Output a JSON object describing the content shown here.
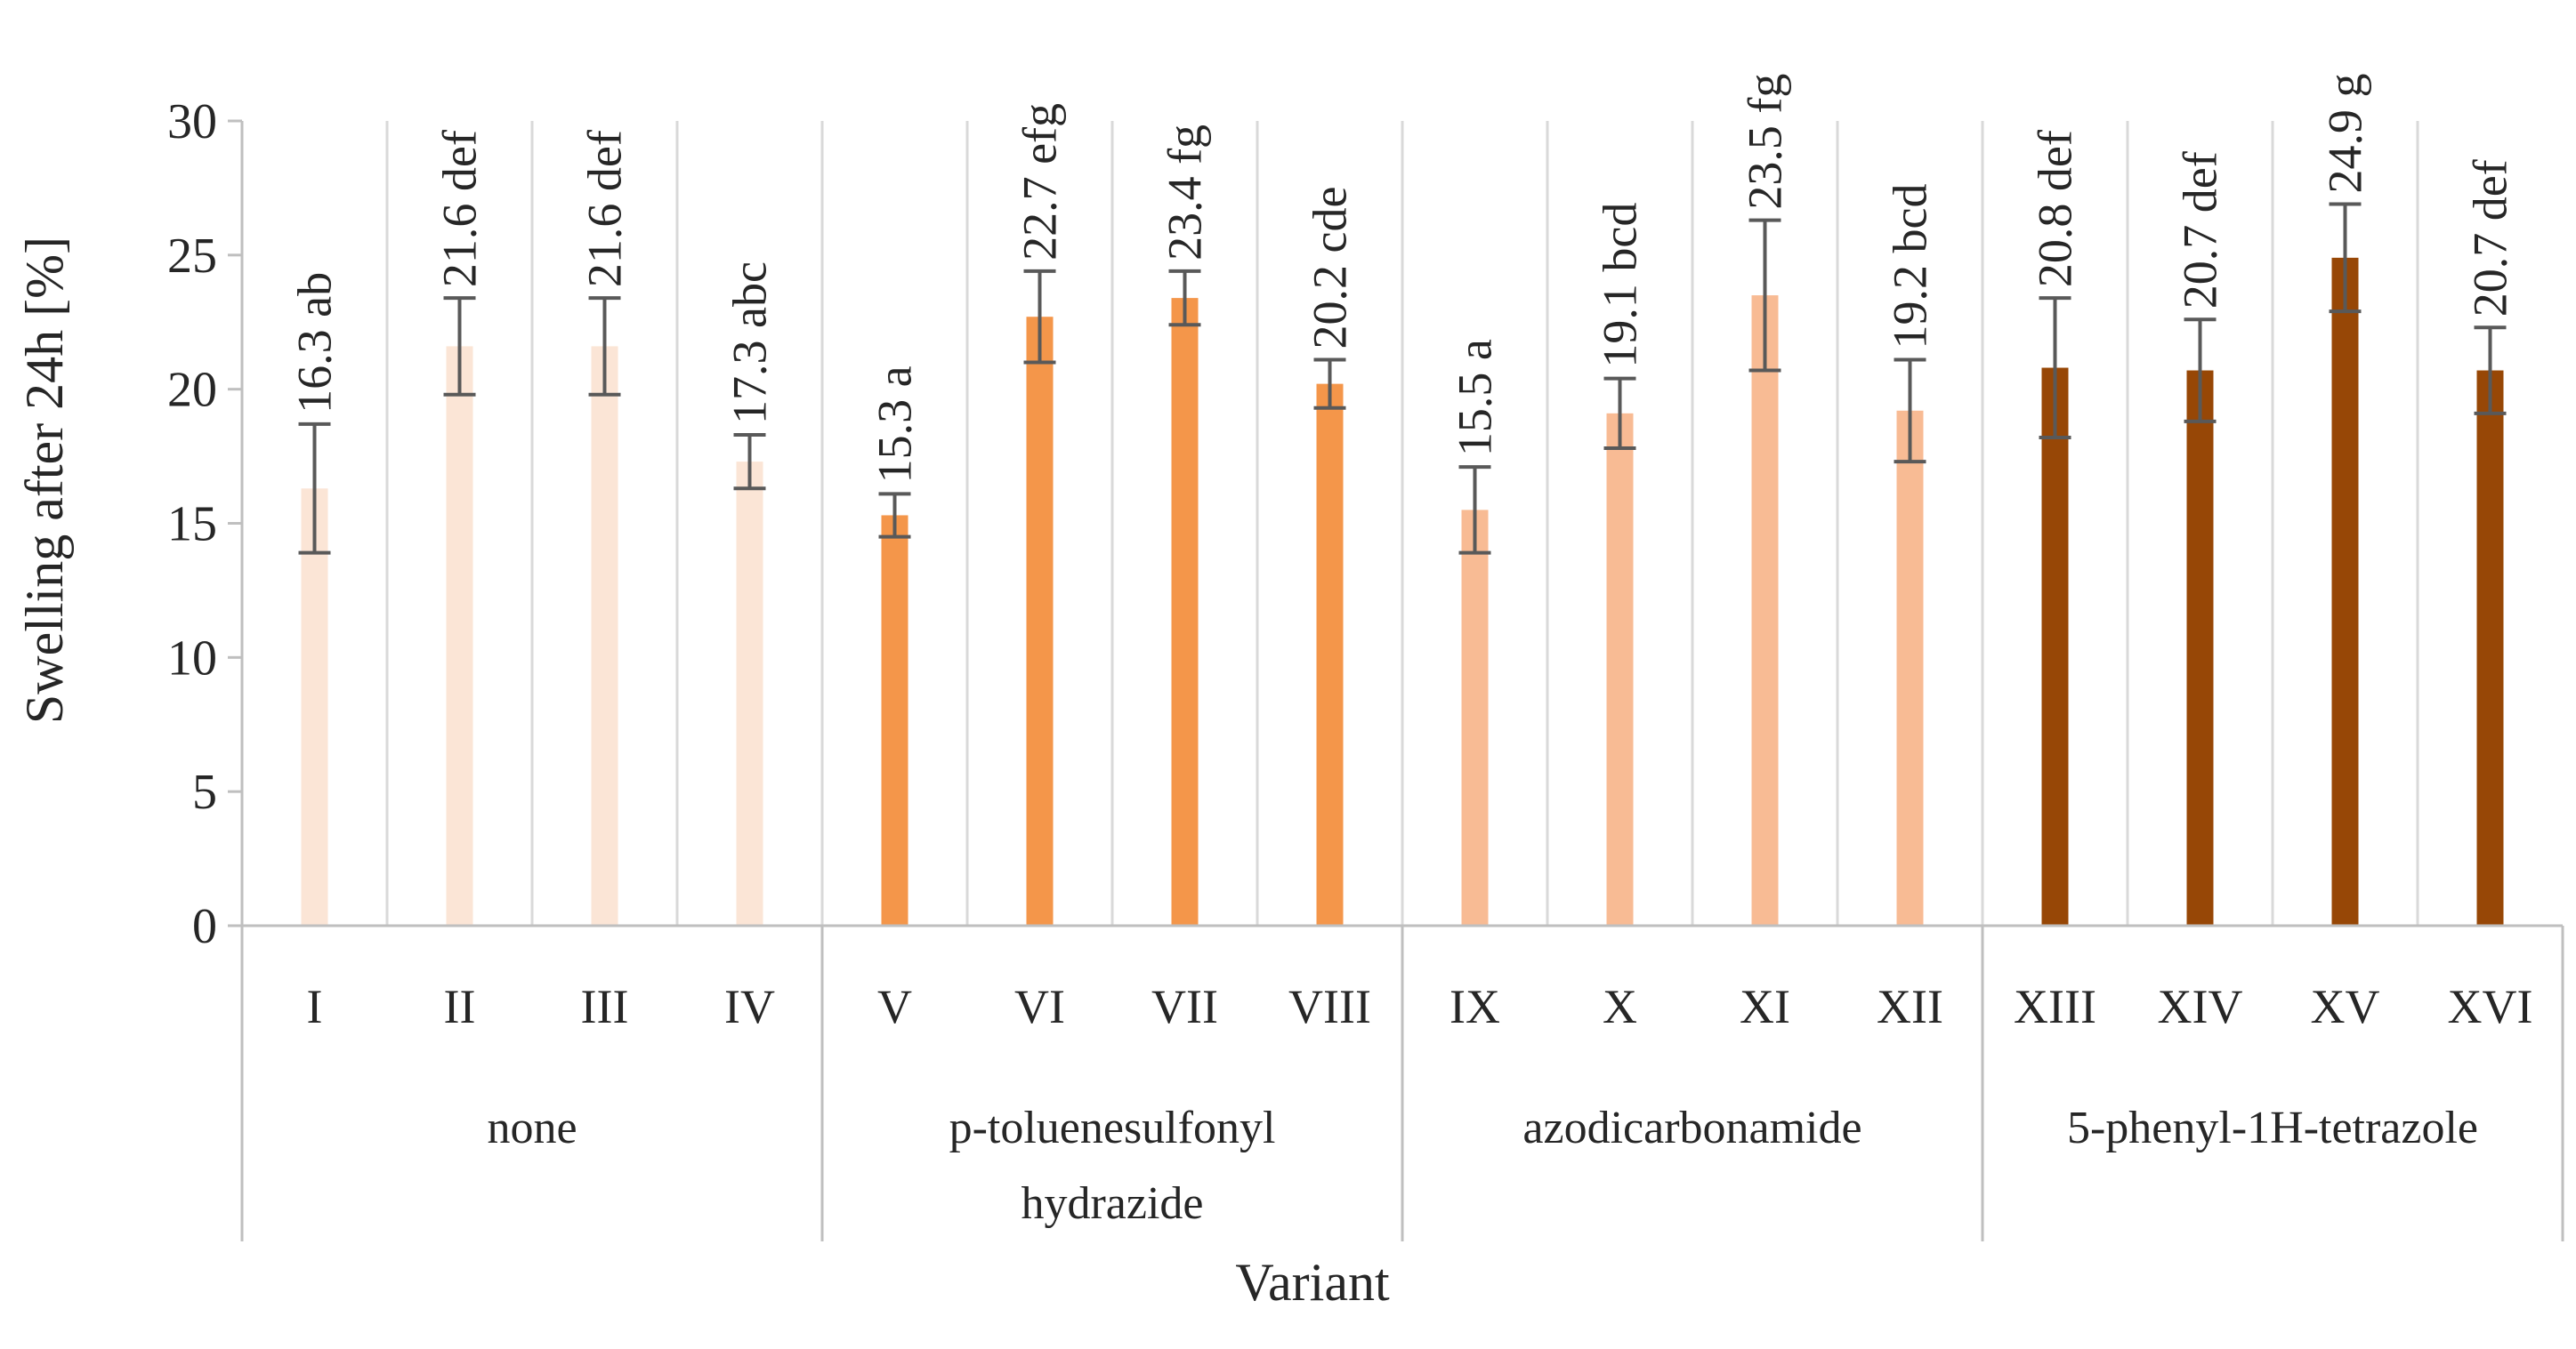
{
  "chart_data": {
    "type": "bar",
    "title": "",
    "xlabel": "Variant",
    "ylabel": "Swelling after 24h  [%]",
    "ylim": [
      0,
      30
    ],
    "yticks": [
      0,
      5,
      10,
      15,
      20,
      25,
      30
    ],
    "grid": "vertical separators",
    "legend": "none",
    "groups": [
      {
        "lines": [
          "none"
        ],
        "color": "#fbe5d6"
      },
      {
        "lines": [
          "p-toluenesulfonyl",
          "hydrazide"
        ],
        "color": "#f4964a"
      },
      {
        "lines": [
          "azodicarbonamide"
        ],
        "color": "#f8bb94"
      },
      {
        "lines": [
          "5-phenyl-1H-tetrazole"
        ],
        "color": "#974706"
      }
    ],
    "bars": [
      {
        "category": "I",
        "group": 0,
        "value": 16.3,
        "error": 2.4,
        "label": "16.3 ab"
      },
      {
        "category": "II",
        "group": 0,
        "value": 21.6,
        "error": 1.8,
        "label": "21.6 def"
      },
      {
        "category": "III",
        "group": 0,
        "value": 21.6,
        "error": 1.8,
        "label": "21.6 def"
      },
      {
        "category": "IV",
        "group": 0,
        "value": 17.3,
        "error": 1.0,
        "label": "17.3 abc"
      },
      {
        "category": "V",
        "group": 1,
        "value": 15.3,
        "error": 0.8,
        "label": "15.3 a"
      },
      {
        "category": "VI",
        "group": 1,
        "value": 22.7,
        "error": 1.7,
        "label": "22.7 efg"
      },
      {
        "category": "VII",
        "group": 1,
        "value": 23.4,
        "error": 1.0,
        "label": "23.4 fg"
      },
      {
        "category": "VIII",
        "group": 1,
        "value": 20.2,
        "error": 0.9,
        "label": "20.2 cde"
      },
      {
        "category": "IX",
        "group": 2,
        "value": 15.5,
        "error": 1.6,
        "label": "15.5 a"
      },
      {
        "category": "X",
        "group": 2,
        "value": 19.1,
        "error": 1.3,
        "label": "19.1 bcd"
      },
      {
        "category": "XI",
        "group": 2,
        "value": 23.5,
        "error": 2.8,
        "label": "23.5 fg"
      },
      {
        "category": "XII",
        "group": 2,
        "value": 19.2,
        "error": 1.9,
        "label": "19.2 bcd"
      },
      {
        "category": "XIII",
        "group": 3,
        "value": 20.8,
        "error": 2.6,
        "label": "20.8 def"
      },
      {
        "category": "XIV",
        "group": 3,
        "value": 20.7,
        "error": 1.9,
        "label": "20.7 def"
      },
      {
        "category": "XV",
        "group": 3,
        "value": 24.9,
        "error": 2.0,
        "label": "24.9 g"
      },
      {
        "category": "XVI",
        "group": 3,
        "value": 20.7,
        "error": 1.6,
        "label": "20.7 def"
      }
    ],
    "colors": {
      "axis": "#bfbfbf",
      "grid": "#d9d9d9",
      "errorbar": "#595959"
    }
  }
}
